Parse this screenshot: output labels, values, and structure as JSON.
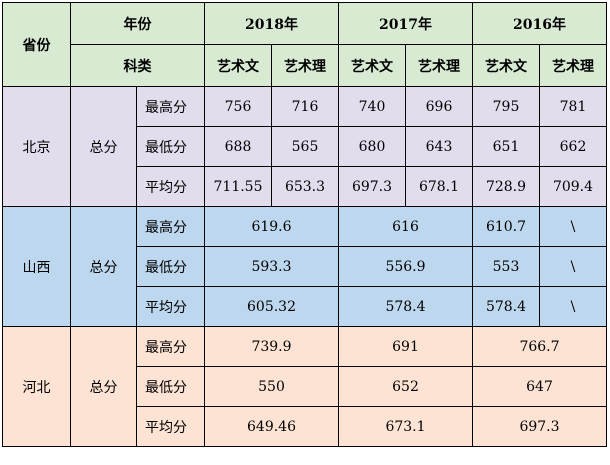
{
  "header": {
    "province_label": "省份",
    "year_label": "年份",
    "category_label": "科类",
    "years": [
      "2018年",
      "2017年",
      "2016年"
    ],
    "subjects": [
      "艺术文",
      "艺术理",
      "艺术文",
      "艺术理",
      "艺术文",
      "艺术理"
    ]
  },
  "beijing": {
    "province": "北京",
    "type": "总分",
    "rows": [
      {
        "label": "最高分",
        "values": [
          "756",
          "716",
          "740",
          "696",
          "795",
          "781"
        ]
      },
      {
        "label": "最低分",
        "values": [
          "688",
          "565",
          "680",
          "643",
          "651",
          "662"
        ]
      },
      {
        "label": "平均分",
        "values": [
          "711.55",
          "653.3",
          "697.3",
          "678.1",
          "728.9",
          "709.4"
        ]
      }
    ]
  },
  "shanxi": {
    "province": "山西",
    "type": "总分",
    "rows": [
      {
        "label": "最高分",
        "v2018": "619.6",
        "v2017": "616",
        "v2016a": "610.7",
        "v2016b": "\\"
      },
      {
        "label": "最低分",
        "v2018": "593.3",
        "v2017": "556.9",
        "v2016a": "553",
        "v2016b": "\\"
      },
      {
        "label": "平均分",
        "v2018": "605.32",
        "v2017": "578.4",
        "v2016a": "578.4",
        "v2016b": "\\"
      }
    ]
  },
  "hebei": {
    "province": "河北",
    "type": "总分",
    "rows": [
      {
        "label": "最高分",
        "v2018": "739.9",
        "v2017": "691",
        "v2016": "766.7"
      },
      {
        "label": "最低分",
        "v2018": "550",
        "v2017": "652",
        "v2016": "647"
      },
      {
        "label": "平均分",
        "v2018": "649.46",
        "v2017": "673.1",
        "v2016": "697.3"
      }
    ]
  }
}
